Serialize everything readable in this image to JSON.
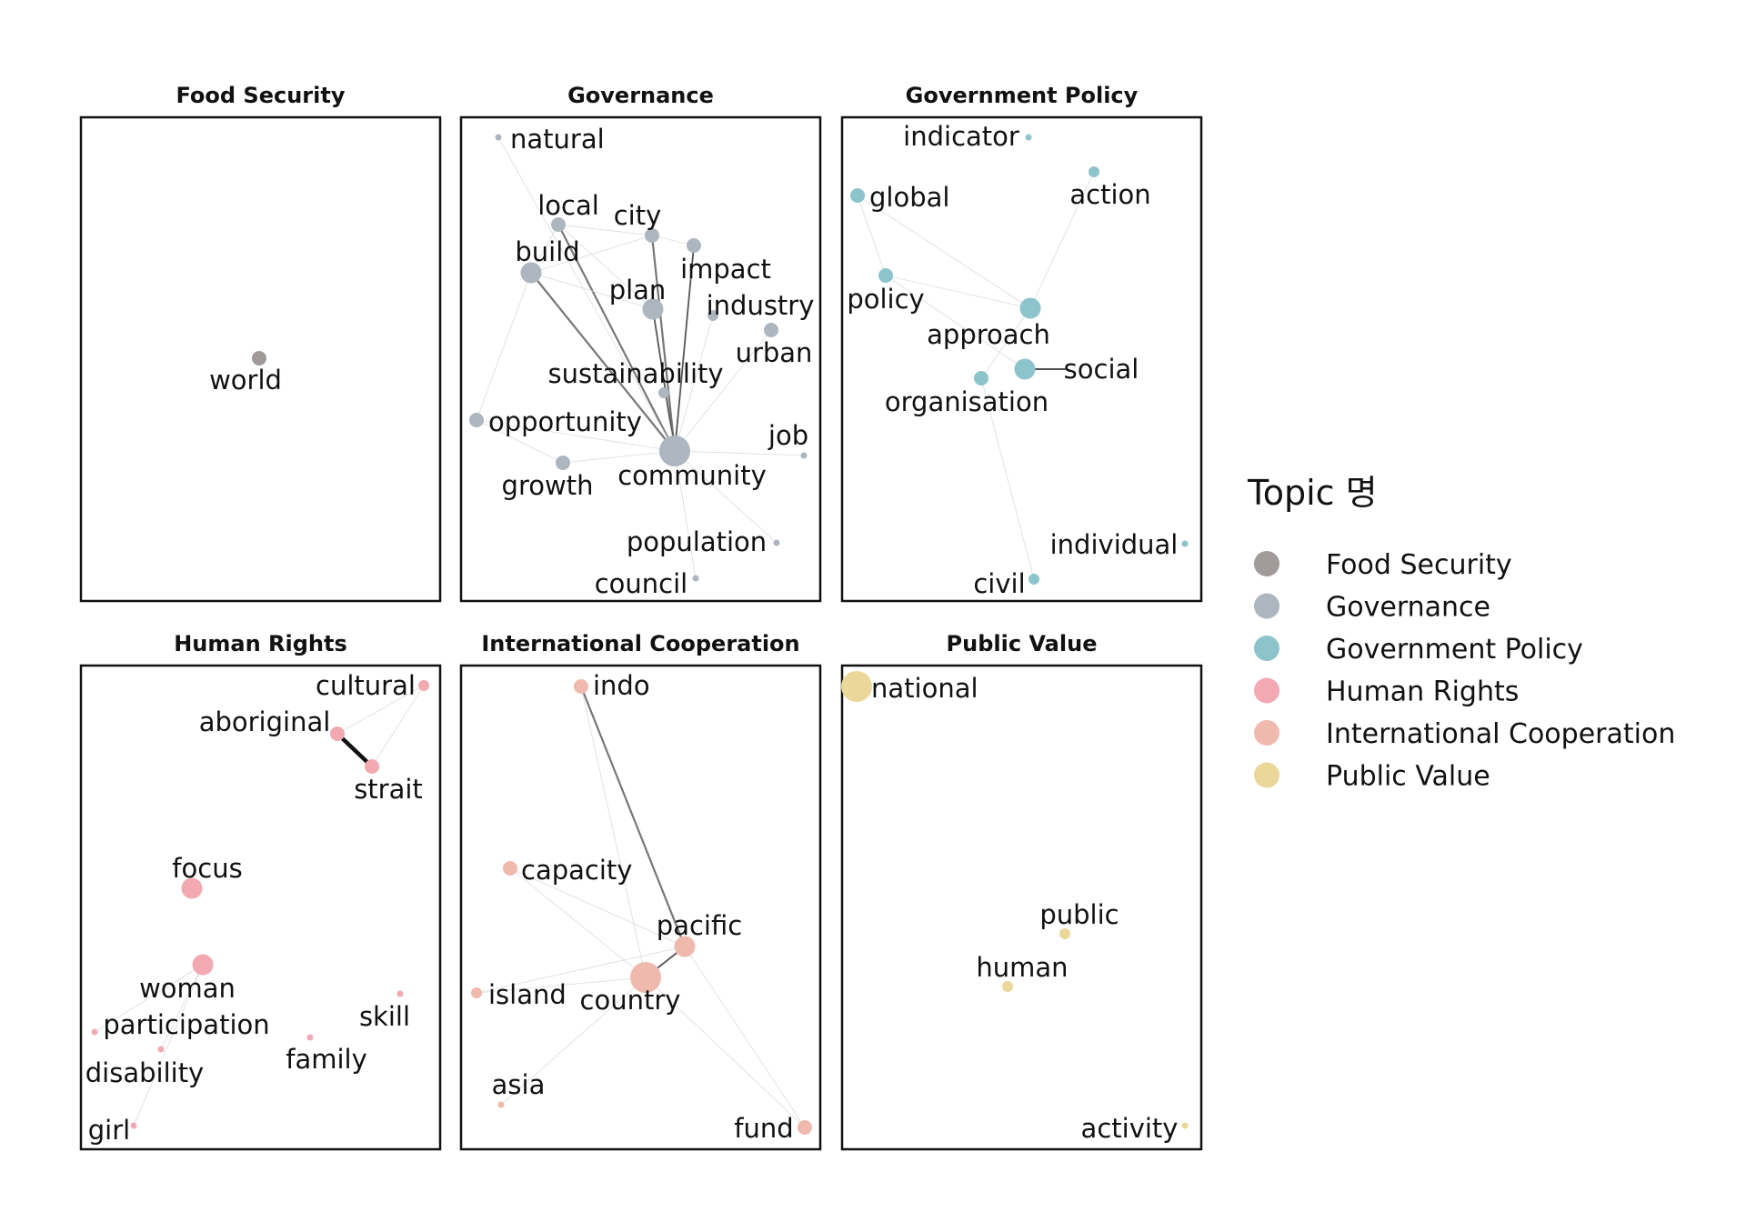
{
  "legend": {
    "title": "Topic 명",
    "items": [
      {
        "label": "Food Security",
        "color": "#a09a9a"
      },
      {
        "label": "Governance",
        "color": "#adb5bf"
      },
      {
        "label": "Government Policy",
        "color": "#8dc4cc"
      },
      {
        "label": "Human Rights",
        "color": "#f2a9b1"
      },
      {
        "label": "International Cooperation",
        "color": "#f0b9ae"
      },
      {
        "label": "Public Value",
        "color": "#ecd79a"
      }
    ]
  },
  "panels": [
    {
      "title": "Food Security",
      "color": "#a09a9a",
      "nodes": [
        {
          "label": "world",
          "size": "medium"
        }
      ],
      "edges": []
    },
    {
      "title": "Governance",
      "color": "#adb5bf",
      "nodes": [
        {
          "label": "natural",
          "size": "tiny"
        },
        {
          "label": "local",
          "size": "medium"
        },
        {
          "label": "city",
          "size": "medium"
        },
        {
          "label": "build",
          "size": "large"
        },
        {
          "label": "impact",
          "size": "medium"
        },
        {
          "label": "plan",
          "size": "large"
        },
        {
          "label": "industry",
          "size": "small"
        },
        {
          "label": "urban",
          "size": "medium"
        },
        {
          "label": "sustainability",
          "size": "small"
        },
        {
          "label": "opportunity",
          "size": "medium"
        },
        {
          "label": "job",
          "size": "tiny"
        },
        {
          "label": "growth",
          "size": "medium"
        },
        {
          "label": "community",
          "size": "xlarge"
        },
        {
          "label": "population",
          "size": "tiny"
        },
        {
          "label": "council",
          "size": "tiny"
        }
      ],
      "edges": [
        {
          "source": "build",
          "target": "community",
          "weight": "strong"
        },
        {
          "source": "local",
          "target": "community",
          "weight": "strong"
        },
        {
          "source": "city",
          "target": "community",
          "weight": "strong"
        },
        {
          "source": "impact",
          "target": "community",
          "weight": "medium"
        },
        {
          "source": "plan",
          "target": "community",
          "weight": "medium"
        },
        {
          "source": "natural",
          "target": "community",
          "weight": "faint"
        },
        {
          "source": "industry",
          "target": "community",
          "weight": "faint"
        },
        {
          "source": "urban",
          "target": "community",
          "weight": "faint"
        },
        {
          "source": "sustainability",
          "target": "community",
          "weight": "faint"
        },
        {
          "source": "opportunity",
          "target": "community",
          "weight": "faint"
        },
        {
          "source": "job",
          "target": "community",
          "weight": "faint"
        },
        {
          "source": "growth",
          "target": "community",
          "weight": "faint"
        },
        {
          "source": "population",
          "target": "community",
          "weight": "faint"
        },
        {
          "source": "council",
          "target": "community",
          "weight": "faint"
        },
        {
          "source": "local",
          "target": "city",
          "weight": "faint"
        },
        {
          "source": "build",
          "target": "local",
          "weight": "faint"
        },
        {
          "source": "build",
          "target": "city",
          "weight": "faint"
        },
        {
          "source": "build",
          "target": "plan",
          "weight": "faint"
        },
        {
          "source": "local",
          "target": "plan",
          "weight": "faint"
        },
        {
          "source": "city",
          "target": "impact",
          "weight": "faint"
        },
        {
          "source": "build",
          "target": "opportunity",
          "weight": "faint"
        },
        {
          "source": "opportunity",
          "target": "growth",
          "weight": "faint"
        }
      ]
    },
    {
      "title": "Government Policy",
      "color": "#8dc4cc",
      "nodes": [
        {
          "label": "indicator",
          "size": "tiny"
        },
        {
          "label": "global",
          "size": "medium"
        },
        {
          "label": "action",
          "size": "small"
        },
        {
          "label": "policy",
          "size": "medium"
        },
        {
          "label": "approach",
          "size": "large"
        },
        {
          "label": "social",
          "size": "large"
        },
        {
          "label": "organisation",
          "size": "medium"
        },
        {
          "label": "individual",
          "size": "tiny"
        },
        {
          "label": "civil",
          "size": "small"
        }
      ],
      "edges": [
        {
          "source": "social",
          "target": "social-tick",
          "weight": "strong"
        },
        {
          "source": "global",
          "target": "approach",
          "weight": "faint"
        },
        {
          "source": "global",
          "target": "policy",
          "weight": "faint"
        },
        {
          "source": "policy",
          "target": "approach",
          "weight": "faint"
        },
        {
          "source": "policy",
          "target": "social",
          "weight": "faint"
        },
        {
          "source": "action",
          "target": "approach",
          "weight": "faint"
        },
        {
          "source": "approach",
          "target": "organisation",
          "weight": "faint"
        },
        {
          "source": "organisation",
          "target": "civil",
          "weight": "faint"
        }
      ]
    },
    {
      "title": "Human Rights",
      "color": "#f2a9b1",
      "nodes": [
        {
          "label": "cultural",
          "size": "small"
        },
        {
          "label": "aboriginal",
          "size": "medium"
        },
        {
          "label": "strait",
          "size": "medium"
        },
        {
          "label": "focus",
          "size": "large"
        },
        {
          "label": "woman",
          "size": "large"
        },
        {
          "label": "participation",
          "size": "tiny"
        },
        {
          "label": "skill",
          "size": "tiny"
        },
        {
          "label": "family",
          "size": "tiny"
        },
        {
          "label": "disability",
          "size": "tiny"
        },
        {
          "label": "girl",
          "size": "tiny"
        }
      ],
      "edges": [
        {
          "source": "aboriginal",
          "target": "strait",
          "weight": "bold"
        },
        {
          "source": "cultural",
          "target": "aboriginal",
          "weight": "faint"
        },
        {
          "source": "cultural",
          "target": "strait",
          "weight": "faint"
        },
        {
          "source": "woman",
          "target": "participation",
          "weight": "faint"
        },
        {
          "source": "woman",
          "target": "disability",
          "weight": "faint"
        },
        {
          "source": "woman",
          "target": "girl",
          "weight": "faint"
        }
      ]
    },
    {
      "title": "International Cooperation",
      "color": "#f0b9ae",
      "nodes": [
        {
          "label": "indo",
          "size": "medium"
        },
        {
          "label": "capacity",
          "size": "medium"
        },
        {
          "label": "pacific",
          "size": "large"
        },
        {
          "label": "island",
          "size": "small"
        },
        {
          "label": "country",
          "size": "xlarge"
        },
        {
          "label": "asia",
          "size": "tiny"
        },
        {
          "label": "fund",
          "size": "medium"
        }
      ],
      "edges": [
        {
          "source": "indo",
          "target": "pacific",
          "weight": "strong"
        },
        {
          "source": "pacific",
          "target": "country",
          "weight": "medium"
        },
        {
          "source": "indo",
          "target": "country",
          "weight": "faint"
        },
        {
          "source": "capacity",
          "target": "country",
          "weight": "faint"
        },
        {
          "source": "capacity",
          "target": "pacific",
          "weight": "faint"
        },
        {
          "source": "island",
          "target": "pacific",
          "weight": "faint"
        },
        {
          "source": "island",
          "target": "country",
          "weight": "faint"
        },
        {
          "source": "asia",
          "target": "country",
          "weight": "faint"
        },
        {
          "source": "country",
          "target": "fund",
          "weight": "faint"
        },
        {
          "source": "pacific",
          "target": "fund",
          "weight": "faint"
        }
      ]
    },
    {
      "title": "Public Value",
      "color": "#ecd79a",
      "nodes": [
        {
          "label": "national",
          "size": "xlarge"
        },
        {
          "label": "public",
          "size": "small"
        },
        {
          "label": "human",
          "size": "small"
        },
        {
          "label": "activity",
          "size": "tiny"
        }
      ],
      "edges": []
    }
  ]
}
